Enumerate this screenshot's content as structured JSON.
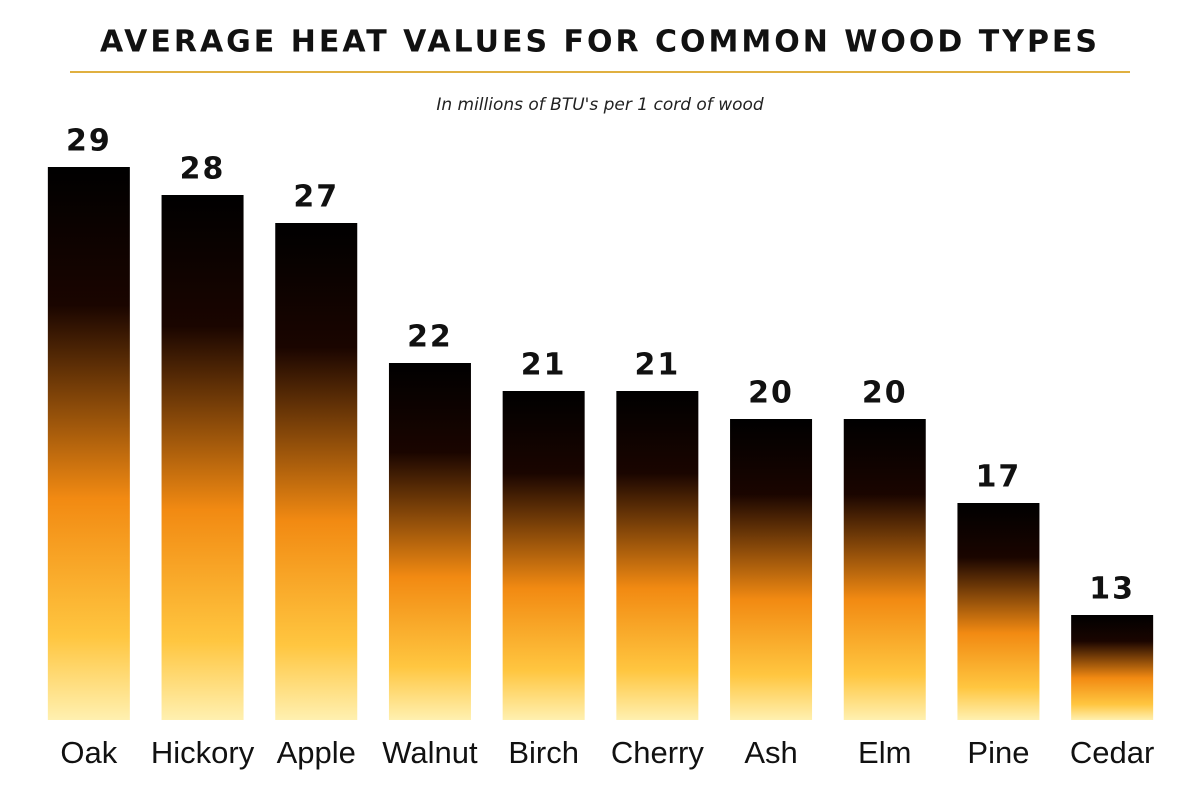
{
  "chart_data": {
    "type": "bar",
    "title": "AVERAGE HEAT VALUES FOR COMMON WOOD TYPES",
    "subtitle": "In millions of BTU's per 1 cord of wood",
    "categories": [
      "Oak",
      "Hickory",
      "Apple",
      "Walnut",
      "Birch",
      "Cherry",
      "Ash",
      "Elm",
      "Pine",
      "Cedar"
    ],
    "values": [
      29,
      28,
      27,
      22,
      21,
      21,
      20,
      20,
      17,
      13
    ],
    "color": "#f28a12",
    "ylim": [
      9.25,
      29
    ]
  }
}
